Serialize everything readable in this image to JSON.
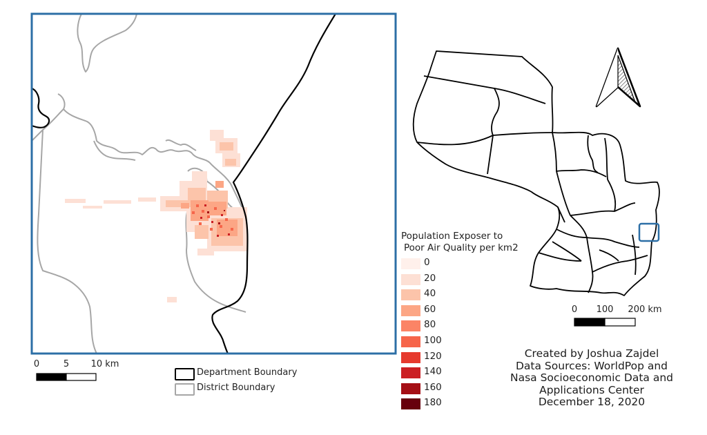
{
  "main_map": {
    "frame_color": "#2c6fa6",
    "scale_bar": {
      "labels": [
        "0",
        "5",
        "10 km"
      ]
    }
  },
  "inset_map": {
    "highlight_color": "#2c6fa6",
    "scale_bar": {
      "labels": [
        "0",
        "100",
        "200 km"
      ]
    },
    "north_arrow_icon": "north-arrow-icon"
  },
  "legend": {
    "title_line1": "Population Exposer to",
    "title_line2": "Poor Air Quality per km2",
    "items": [
      {
        "label": "0",
        "color": "#fff0eb"
      },
      {
        "label": "20",
        "color": "#fde0d5"
      },
      {
        "label": "40",
        "color": "#fcc4aa"
      },
      {
        "label": "60",
        "color": "#fca685"
      },
      {
        "label": "80",
        "color": "#fb8466"
      },
      {
        "label": "100",
        "color": "#f6654a"
      },
      {
        "label": "120",
        "color": "#e63a2e"
      },
      {
        "label": "140",
        "color": "#cb1f23"
      },
      {
        "label": "160",
        "color": "#a50f15"
      },
      {
        "label": "180",
        "color": "#67000d"
      }
    ]
  },
  "boundary_legend": {
    "department": {
      "label": "Department Boundary",
      "color": "#000000"
    },
    "district": {
      "label": "District Boundary",
      "color": "#a6a6a6"
    }
  },
  "credits": {
    "line1": "Created by Joshua Zajdel",
    "line2": "Data Sources: WorldPop and",
    "line3": "Nasa Socioeconomic Data and",
    "line4": "Applications Center",
    "line5": "December 18, 2020"
  }
}
